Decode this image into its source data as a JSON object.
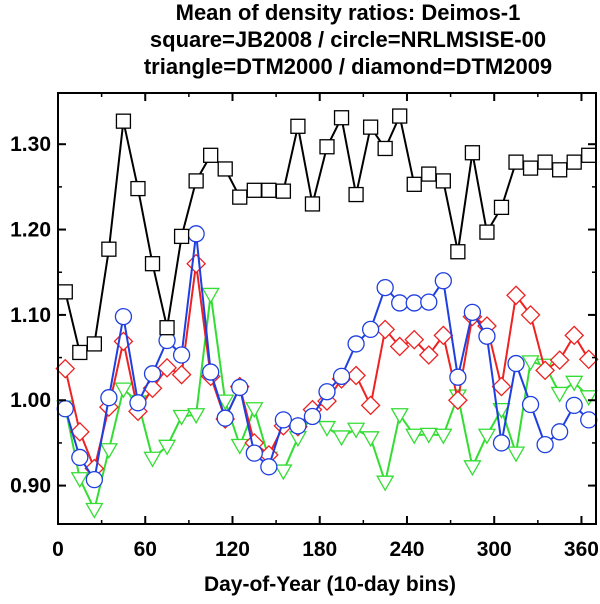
{
  "chart_data": {
    "type": "line",
    "title_lines": [
      "Mean of density ratios: Deimos-1",
      "square=JB2008 / circle=NRLMSISE-00",
      "triangle=DTM2000 / diamond=DTM2009"
    ],
    "xlabel": "Day-of-Year (10-day bins)",
    "ylabel": "",
    "xlim": [
      0,
      370
    ],
    "ylim": [
      0.855,
      1.36
    ],
    "x_ticks": [
      0,
      60,
      120,
      180,
      240,
      300,
      360
    ],
    "y_ticks": [
      0.9,
      1.0,
      1.1,
      1.2,
      1.3
    ],
    "y_tick_labels": [
      "0.90",
      "1.00",
      "1.10",
      "1.20",
      "1.30"
    ],
    "x": [
      5,
      15,
      25,
      35,
      45,
      55,
      65,
      75,
      85,
      95,
      105,
      115,
      125,
      135,
      145,
      155,
      165,
      175,
      185,
      195,
      205,
      215,
      225,
      235,
      245,
      255,
      265,
      275,
      285,
      295,
      305,
      315,
      325,
      335,
      345,
      355,
      365
    ],
    "series": [
      {
        "name": "JB2008",
        "marker": "square",
        "color": "#000000",
        "values": [
          1.127,
          1.056,
          1.066,
          1.177,
          1.327,
          1.248,
          1.16,
          1.085,
          1.192,
          1.257,
          1.287,
          1.271,
          1.238,
          1.246,
          1.246,
          1.245,
          1.321,
          1.23,
          1.297,
          1.331,
          1.241,
          1.32,
          1.295,
          1.333,
          1.253,
          1.265,
          1.257,
          1.174,
          1.29,
          1.197,
          1.226,
          1.279,
          1.272,
          1.279,
          1.27,
          1.279,
          1.287
        ]
      },
      {
        "name": "NRLMSISE-00",
        "marker": "circle",
        "color": "#1f3fe0",
        "values": [
          0.99,
          0.933,
          0.907,
          1.003,
          1.098,
          0.997,
          1.031,
          1.07,
          1.053,
          1.195,
          1.033,
          0.979,
          1.015,
          0.938,
          0.922,
          0.977,
          0.97,
          0.981,
          1.01,
          1.028,
          1.066,
          1.083,
          1.132,
          1.114,
          1.114,
          1.115,
          1.14,
          1.027,
          1.103,
          1.075,
          0.95,
          1.043,
          0.995,
          0.948,
          0.963,
          0.994,
          0.977
        ]
      },
      {
        "name": "DTM2000",
        "marker": "triangle",
        "color": "#33dd33",
        "values": [
          0.992,
          0.908,
          0.872,
          0.942,
          1.013,
          0.998,
          0.932,
          0.946,
          0.981,
          0.983,
          1.124,
          0.999,
          0.947,
          0.99,
          0.932,
          0.917,
          0.956,
          0.983,
          0.968,
          0.957,
          0.966,
          0.956,
          0.904,
          0.983,
          0.959,
          0.96,
          0.959,
          1.005,
          0.922,
          0.959,
          0.989,
          0.938,
          1.045,
          1.041,
          1.008,
          1.021,
          1.004
        ]
      },
      {
        "name": "DTM2009",
        "marker": "diamond",
        "color": "#ee2222",
        "values": [
          1.037,
          0.963,
          0.92,
          0.992,
          1.069,
          0.987,
          1.014,
          1.038,
          1.03,
          1.16,
          1.028,
          0.978,
          1.016,
          0.95,
          0.936,
          0.97,
          0.969,
          0.989,
          0.999,
          1.025,
          1.029,
          0.994,
          1.083,
          1.063,
          1.071,
          1.053,
          1.076,
          1.0,
          1.098,
          1.087,
          1.016,
          1.123,
          1.1,
          1.035,
          1.047,
          1.076,
          1.048
        ]
      }
    ],
    "grid": false,
    "legend": "none"
  }
}
